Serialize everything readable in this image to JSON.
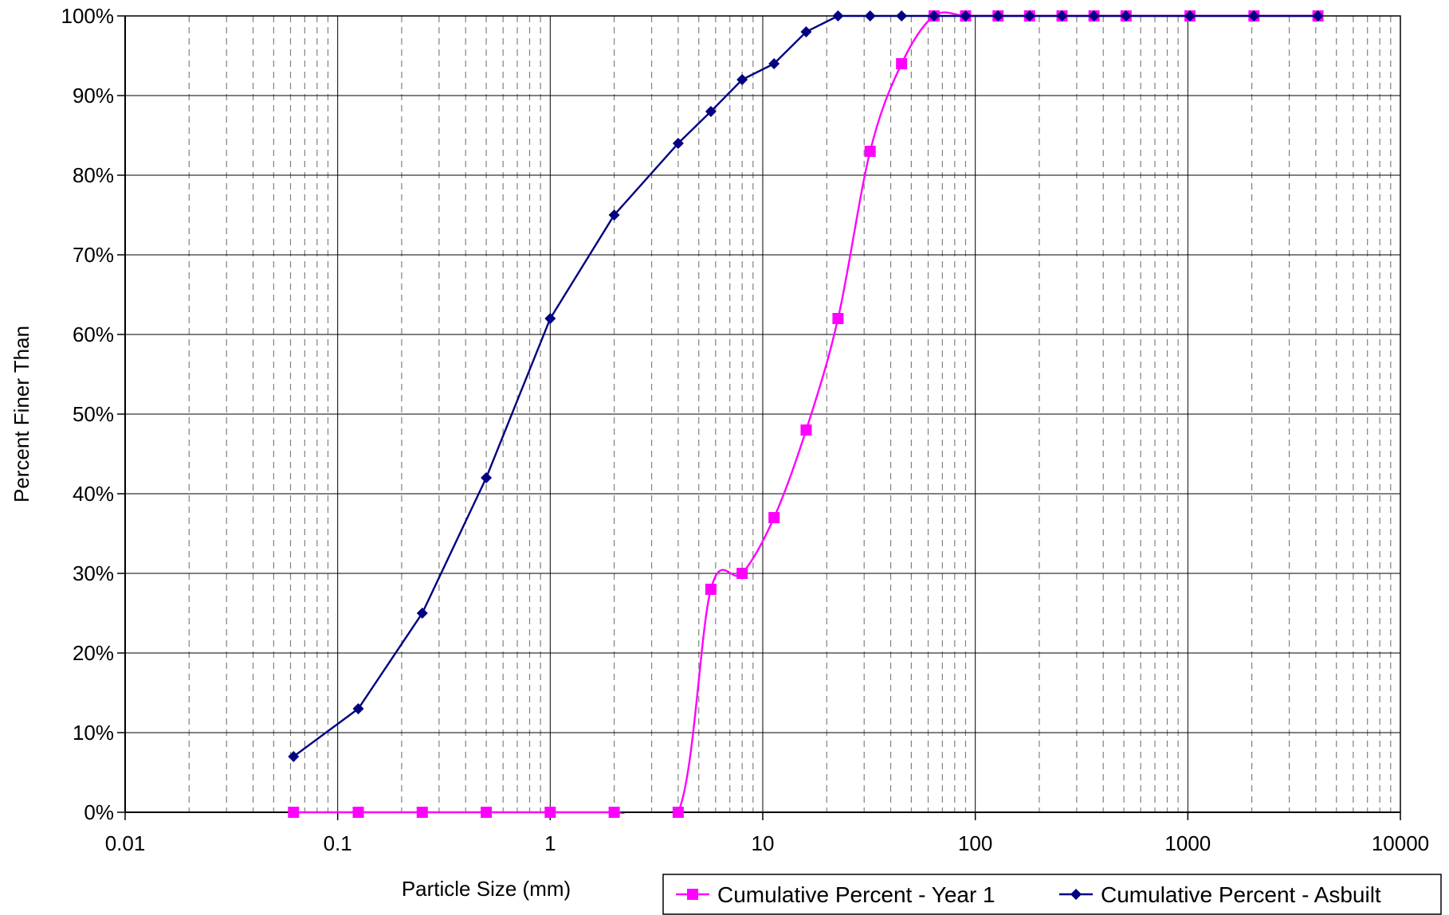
{
  "chart_data": {
    "type": "line",
    "xlabel": "Particle Size (mm)",
    "ylabel": "Percent Finer Than",
    "x_scale": "log",
    "xlim": [
      0.01,
      10000
    ],
    "ylim": [
      0,
      100
    ],
    "x_tick_labels": [
      "0.01",
      "0.1",
      "1",
      "10",
      "100",
      "1000",
      "10000"
    ],
    "y_tick_labels": [
      "0%",
      "10%",
      "20%",
      "30%",
      "40%",
      "50%",
      "60%",
      "70%",
      "80%",
      "90%",
      "100%"
    ],
    "grid": true,
    "legend_position": "bottom-right",
    "series": [
      {
        "name": "Cumulative Percent - Year 1",
        "color": "#ff00ff",
        "marker": "square",
        "x": [
          0.062,
          0.125,
          0.25,
          0.5,
          1,
          2,
          4,
          5.7,
          8,
          11.3,
          16,
          22.6,
          32,
          45,
          64,
          90,
          128,
          180,
          256,
          362,
          512,
          1024,
          2048,
          4096
        ],
        "y": [
          0,
          0,
          0,
          0,
          0,
          0,
          0,
          28,
          30,
          37,
          48,
          62,
          83,
          94,
          100,
          100,
          100,
          100,
          100,
          100,
          100,
          100,
          100,
          100
        ]
      },
      {
        "name": "Cumulative Percent - Asbuilt",
        "color": "#000080",
        "marker": "diamond",
        "x": [
          0.062,
          0.125,
          0.25,
          0.5,
          1,
          2,
          4,
          5.7,
          8,
          11.3,
          16,
          22.6,
          32,
          45,
          64,
          90,
          128,
          180,
          256,
          362,
          512,
          1024,
          2048,
          4096
        ],
        "y": [
          7,
          13,
          25,
          42,
          62,
          75,
          84,
          88,
          92,
          94,
          98,
          100,
          100,
          100,
          100,
          100,
          100,
          100,
          100,
          100,
          100,
          100,
          100,
          100
        ]
      }
    ]
  }
}
